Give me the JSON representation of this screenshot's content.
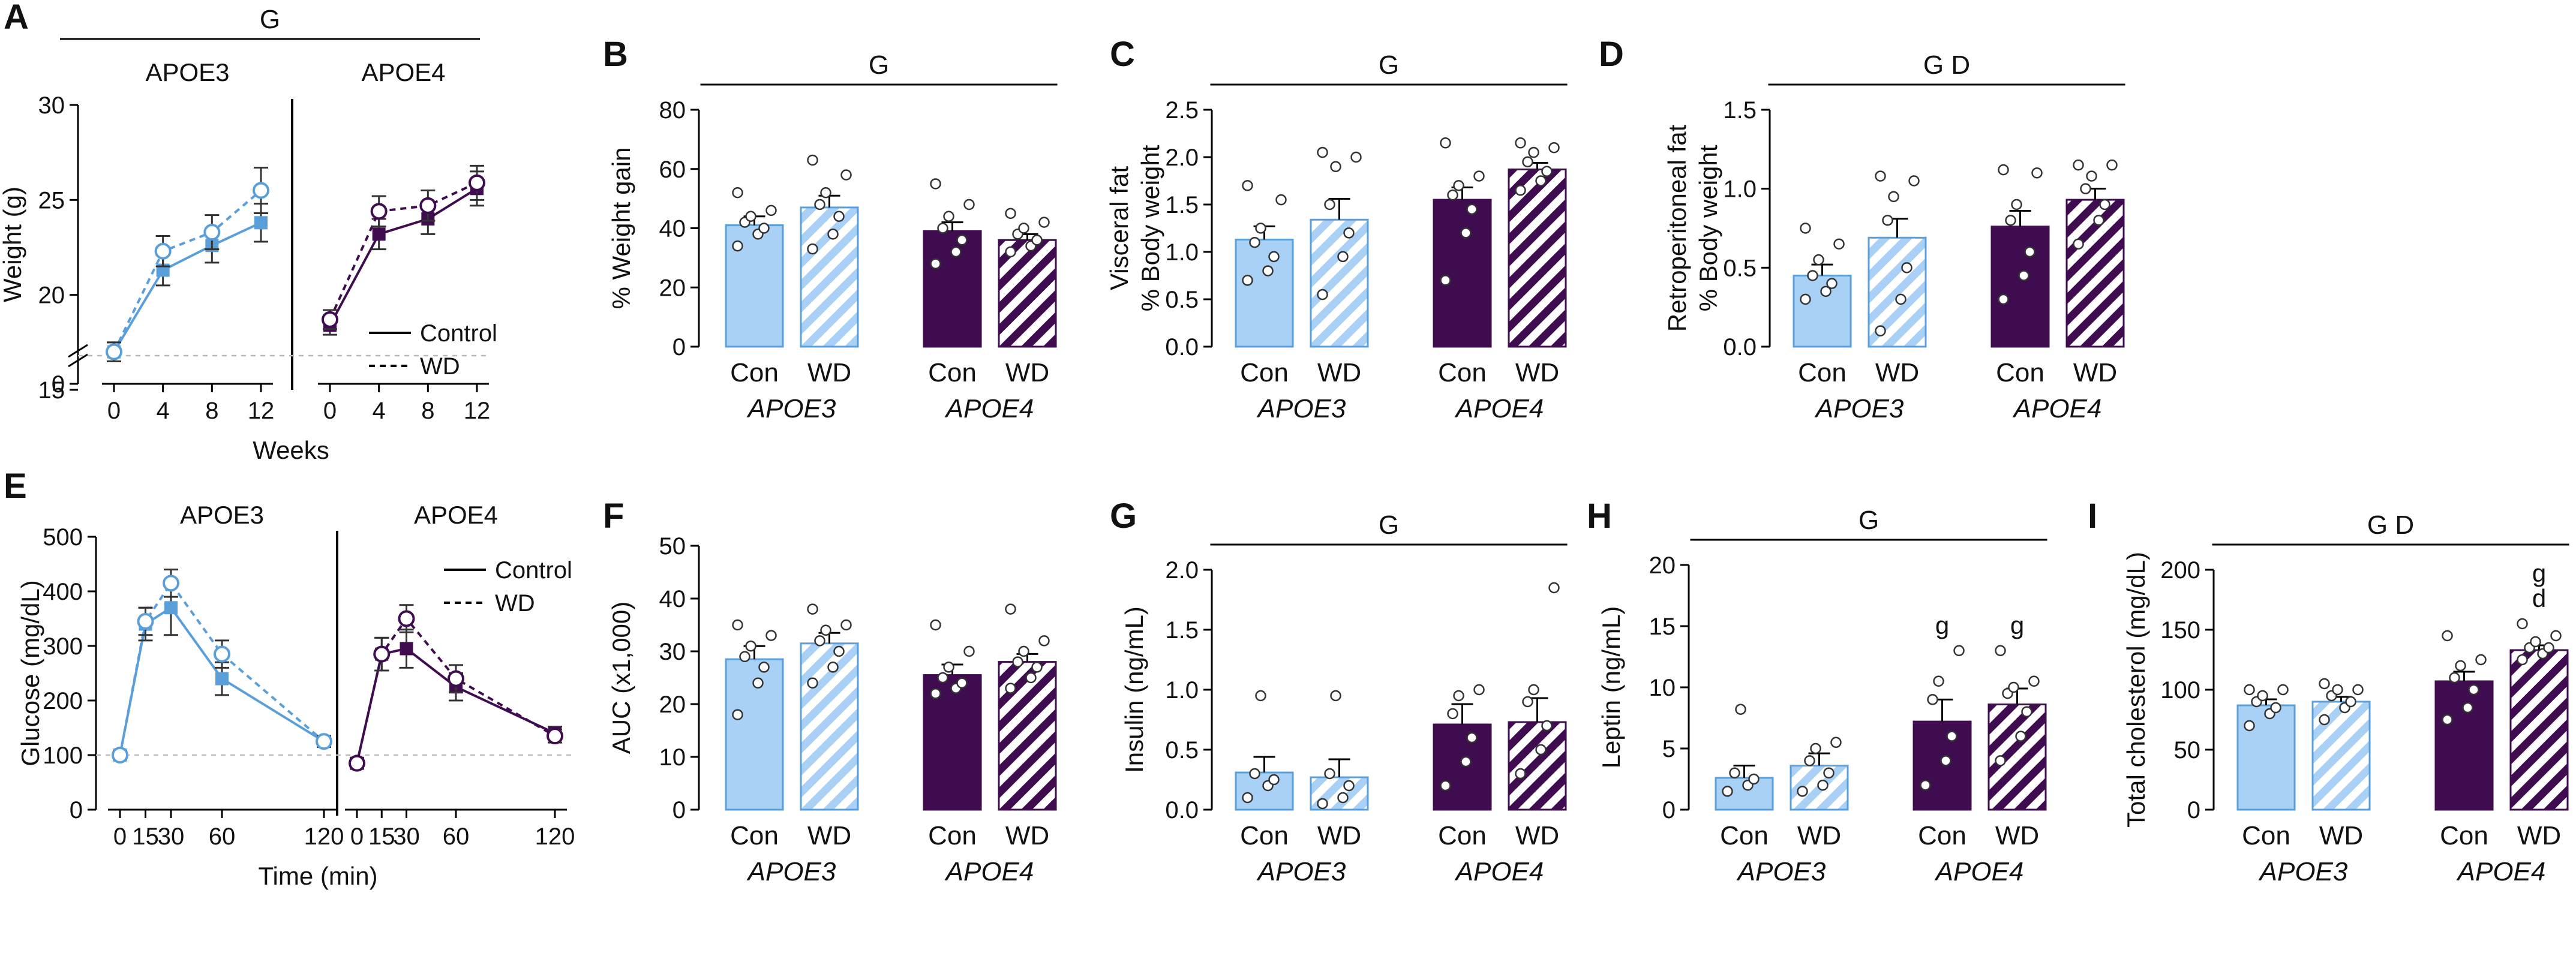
{
  "colors": {
    "apoe3": "#a9d0f5",
    "apoe3_line": "#5a9fd9",
    "apoe4": "#3f0d4f",
    "bar_fill_e3": "#a9d0f5",
    "bar_fill_e4": "#3f0d4f"
  },
  "chart_data": [
    {
      "panel": "A",
      "type": "line",
      "ylabel": "Weight (g)",
      "xlabel": "Weeks",
      "sig": "G",
      "ylim": [
        15,
        30
      ],
      "yticks": [
        "15",
        "20",
        "25",
        "30"
      ],
      "y_axis_break": true,
      "groups": [
        {
          "name": "APOE3",
          "color": "#5a9fd9",
          "x": [
            0,
            4,
            8,
            12
          ],
          "x_labels": [
            "0",
            "4",
            "8",
            "12"
          ],
          "series": [
            {
              "name": "Control",
              "style": "solid",
              "values": [
                17.0,
                21.3,
                22.6,
                23.8
              ],
              "err": [
                0.5,
                0.8,
                0.9,
                1.0
              ]
            },
            {
              "name": "WD",
              "style": "dashed",
              "values": [
                17.0,
                22.3,
                23.3,
                25.5
              ],
              "err": [
                0.5,
                0.8,
                0.9,
                1.2
              ]
            }
          ]
        },
        {
          "name": "APOE4",
          "color": "#3f0d4f",
          "x": [
            0,
            4,
            8,
            12
          ],
          "x_labels": [
            "0",
            "4",
            "8",
            "12"
          ],
          "series": [
            {
              "name": "Control",
              "style": "solid",
              "values": [
                18.4,
                23.2,
                24.0,
                25.6
              ],
              "err": [
                0.5,
                0.8,
                0.8,
                0.9
              ]
            },
            {
              "name": "WD",
              "style": "dashed",
              "values": [
                18.7,
                24.4,
                24.7,
                25.9
              ],
              "err": [
                0.5,
                0.8,
                0.8,
                0.9
              ]
            }
          ]
        }
      ],
      "legend": [
        "Control",
        "WD"
      ],
      "reference_line": 16.8
    },
    {
      "panel": "B",
      "type": "bar",
      "ylabel": "% Weight gain",
      "sig": "G",
      "ylim": [
        0,
        80
      ],
      "yticks": [
        "0",
        "20",
        "40",
        "60",
        "80"
      ],
      "categories": [
        "Con",
        "WD",
        "Con",
        "WD"
      ],
      "genotypes": [
        "APOE3",
        "APOE4"
      ],
      "values": [
        41,
        47,
        39,
        36
      ],
      "err": [
        3,
        4,
        3,
        2
      ],
      "points": [
        [
          34,
          38,
          40,
          42,
          44,
          46,
          52
        ],
        [
          33,
          38,
          44,
          48,
          52,
          58,
          63
        ],
        [
          28,
          32,
          36,
          40,
          44,
          48,
          55
        ],
        [
          32,
          34,
          36,
          38,
          40,
          42,
          45
        ]
      ],
      "annotations": [
        [],
        [],
        [],
        []
      ]
    },
    {
      "panel": "C",
      "type": "bar",
      "ylabel": "Visceral fat % Body weight",
      "ylabel_lines": [
        "Visceral fat",
        "% Body weight"
      ],
      "sig": "G",
      "ylim": [
        0,
        2.5
      ],
      "yticks": [
        "0.0",
        "0.5",
        "1.0",
        "1.5",
        "2.0",
        "2.5"
      ],
      "categories": [
        "Con",
        "WD",
        "Con",
        "WD"
      ],
      "genotypes": [
        "APOE3",
        "APOE4"
      ],
      "values": [
        1.13,
        1.34,
        1.55,
        1.87
      ],
      "err": [
        0.14,
        0.22,
        0.13,
        0.07
      ],
      "points": [
        [
          0.7,
          0.8,
          0.95,
          1.1,
          1.25,
          1.55,
          1.7
        ],
        [
          0.55,
          0.95,
          1.2,
          1.5,
          1.9,
          2.0,
          2.05
        ],
        [
          0.7,
          1.2,
          1.45,
          1.6,
          1.7,
          1.8,
          2.15
        ],
        [
          1.65,
          1.75,
          1.85,
          1.95,
          2.05,
          2.1,
          2.15
        ]
      ],
      "annotations": [
        [],
        [],
        [],
        []
      ]
    },
    {
      "panel": "D",
      "type": "bar",
      "ylabel": "Retroperitoneal fat % Body weight",
      "ylabel_lines": [
        "Retroperitoneal fat",
        "% Body weight"
      ],
      "sig": "G  D",
      "ylim": [
        0,
        1.5
      ],
      "yticks": [
        "0.0",
        "0.5",
        "1.0",
        "1.5"
      ],
      "categories": [
        "Con",
        "WD",
        "Con",
        "WD"
      ],
      "genotypes": [
        "APOE3",
        "APOE4"
      ],
      "values": [
        0.45,
        0.69,
        0.76,
        0.93
      ],
      "err": [
        0.07,
        0.12,
        0.1,
        0.07
      ],
      "points": [
        [
          0.3,
          0.35,
          0.4,
          0.45,
          0.55,
          0.65,
          0.75
        ],
        [
          0.1,
          0.3,
          0.5,
          0.8,
          0.95,
          1.05,
          1.08
        ],
        [
          0.3,
          0.45,
          0.6,
          0.8,
          0.9,
          1.1,
          1.12
        ],
        [
          0.65,
          0.8,
          0.9,
          1.0,
          1.08,
          1.15,
          1.15
        ]
      ],
      "annotations": [
        [],
        [],
        [],
        []
      ]
    },
    {
      "panel": "E",
      "type": "line",
      "ylabel": "Glucose (mg/dL)",
      "xlabel": "Time (min)",
      "ylim": [
        0,
        500
      ],
      "yticks": [
        "0",
        "100",
        "200",
        "300",
        "400",
        "500"
      ],
      "groups": [
        {
          "name": "APOE3",
          "color": "#5a9fd9",
          "x": [
            0,
            15,
            30,
            60,
            120
          ],
          "x_labels": [
            "0",
            "15",
            "30",
            "60",
            "120"
          ],
          "series": [
            {
              "name": "Control",
              "style": "solid",
              "values": [
                100,
                340,
                370,
                240,
                125
              ],
              "err": [
                8,
                30,
                50,
                30,
                10
              ]
            },
            {
              "name": "WD",
              "style": "dashed",
              "values": [
                100,
                345,
                415,
                285,
                125
              ],
              "err": [
                8,
                25,
                25,
                25,
                10
              ]
            }
          ]
        },
        {
          "name": "APOE4",
          "color": "#3f0d4f",
          "x": [
            0,
            15,
            30,
            60,
            120
          ],
          "x_labels": [
            "0",
            "15",
            "30",
            "60",
            "120"
          ],
          "series": [
            {
              "name": "Control",
              "style": "solid",
              "values": [
                85,
                285,
                295,
                225,
                140
              ],
              "err": [
                10,
                30,
                35,
                25,
                12
              ]
            },
            {
              "name": "WD",
              "style": "dashed",
              "values": [
                85,
                285,
                350,
                240,
                135
              ],
              "err": [
                10,
                30,
                25,
                25,
                12
              ]
            }
          ]
        }
      ],
      "legend": [
        "Control",
        "WD"
      ],
      "reference_line": 100
    },
    {
      "panel": "F",
      "type": "bar",
      "ylabel": "AUC (x1,000)",
      "sig": "",
      "ylim": [
        0,
        50
      ],
      "yticks": [
        "0",
        "10",
        "20",
        "30",
        "40",
        "50"
      ],
      "categories": [
        "Con",
        "WD",
        "Con",
        "WD"
      ],
      "genotypes": [
        "APOE3",
        "APOE4"
      ],
      "values": [
        28.5,
        31.5,
        25.5,
        28
      ],
      "err": [
        2.5,
        2,
        2,
        1.5
      ],
      "points": [
        [
          18,
          24,
          27,
          29,
          31,
          33,
          35
        ],
        [
          24,
          27,
          30,
          32,
          34,
          35,
          38
        ],
        [
          22,
          23,
          24,
          25,
          27,
          30,
          35
        ],
        [
          23,
          25,
          27,
          28,
          30,
          32,
          38
        ]
      ],
      "annotations": [
        [],
        [],
        [],
        []
      ]
    },
    {
      "panel": "G",
      "type": "bar",
      "ylabel": "Insulin (ng/mL)",
      "sig": "G",
      "ylim": [
        0,
        2.0
      ],
      "yticks": [
        "0.0",
        "0.5",
        "1.0",
        "1.5",
        "2.0"
      ],
      "categories": [
        "Con",
        "WD",
        "Con",
        "WD"
      ],
      "genotypes": [
        "APOE3",
        "APOE4"
      ],
      "values": [
        0.31,
        0.27,
        0.71,
        0.73
      ],
      "err": [
        0.13,
        0.15,
        0.17,
        0.2
      ],
      "points": [
        [
          0.1,
          0.2,
          0.25,
          0.3,
          0.95
        ],
        [
          0.05,
          0.1,
          0.2,
          0.3,
          0.95
        ],
        [
          0.2,
          0.4,
          0.6,
          0.8,
          0.95,
          1.0
        ],
        [
          0.3,
          0.5,
          0.7,
          0.9,
          1.0,
          1.85
        ]
      ],
      "annotations": [
        [],
        [],
        [],
        []
      ]
    },
    {
      "panel": "H",
      "type": "bar",
      "ylabel": "Leptin (ng/mL)",
      "sig": "G",
      "ylim": [
        0,
        20
      ],
      "yticks": [
        "0",
        "5",
        "10",
        "15",
        "20"
      ],
      "categories": [
        "Con",
        "WD",
        "Con",
        "WD"
      ],
      "genotypes": [
        "APOE3",
        "APOE4"
      ],
      "values": [
        2.6,
        3.6,
        7.2,
        8.6
      ],
      "err": [
        1,
        1,
        1.8,
        1.3
      ],
      "points": [
        [
          1.5,
          2,
          2.5,
          3,
          8.2
        ],
        [
          1.5,
          2,
          3,
          4,
          5,
          5.5
        ],
        [
          2,
          4,
          6,
          9,
          10.5,
          13
        ],
        [
          4,
          6,
          8,
          9.5,
          10,
          10.5,
          13
        ]
      ],
      "annotations": [
        [],
        [],
        [
          "g"
        ],
        [
          "g"
        ]
      ]
    },
    {
      "panel": "I",
      "type": "bar",
      "ylabel": "Total cholesterol (mg/dL)",
      "sig": "G D",
      "ylim": [
        0,
        200
      ],
      "yticks": [
        "0",
        "50",
        "100",
        "150",
        "200"
      ],
      "categories": [
        "Con",
        "WD",
        "Con",
        "WD"
      ],
      "genotypes": [
        "APOE3",
        "APOE4"
      ],
      "values": [
        87,
        90,
        107,
        133
      ],
      "err": [
        5,
        4,
        8,
        4
      ],
      "points": [
        [
          70,
          80,
          85,
          90,
          95,
          100,
          100
        ],
        [
          75,
          85,
          90,
          95,
          100,
          100,
          105
        ],
        [
          75,
          85,
          100,
          110,
          120,
          125,
          145
        ],
        [
          125,
          130,
          135,
          135,
          140,
          145,
          155
        ]
      ],
      "annotations": [
        [],
        [],
        [],
        [
          "g",
          "d"
        ]
      ]
    }
  ]
}
